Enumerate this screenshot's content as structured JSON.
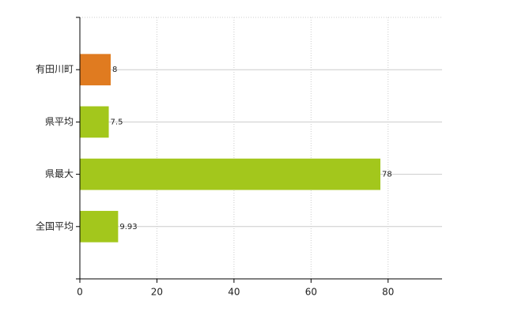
{
  "chart_data": {
    "type": "bar",
    "orientation": "horizontal",
    "categories": [
      "有田川町",
      "県平均",
      "県最大",
      "全国平均"
    ],
    "values": [
      8,
      7.5,
      78,
      9.93
    ],
    "colors": [
      "#e07b20",
      "#a3c71c",
      "#a3c71c",
      "#a3c71c"
    ],
    "xlim": [
      0,
      94
    ],
    "xticks": [
      0,
      20,
      40,
      60,
      80
    ],
    "grid": true
  }
}
